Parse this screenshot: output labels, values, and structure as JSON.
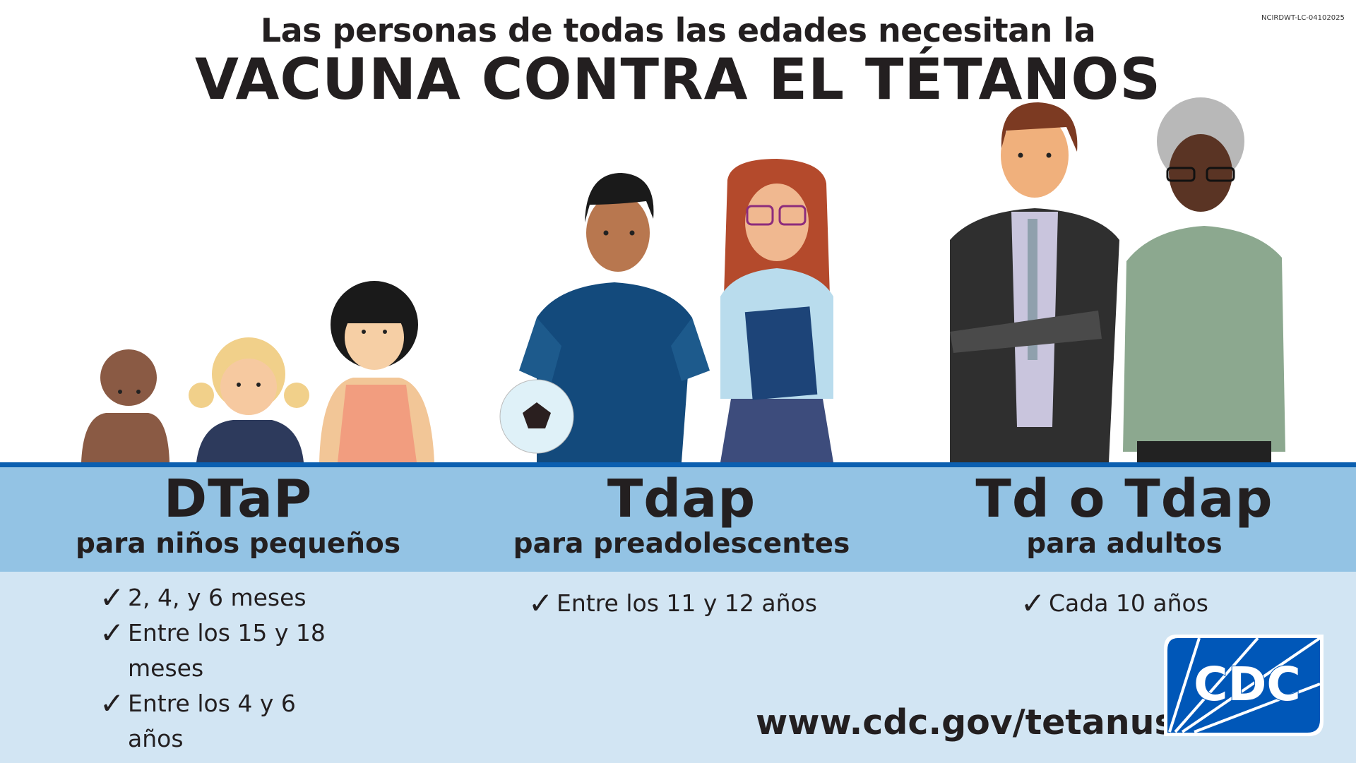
{
  "code": "NCIRDWT-LC-04102025",
  "title": {
    "line1": "Las personas de todas las edades necesitan la",
    "line2": "VACUNA CONTRA EL TÉTANOS"
  },
  "columns": [
    {
      "vaccine": "DTaP",
      "audience": "para niños pequeños",
      "items": [
        "2, 4, y 6 meses",
        "Entre los 15 y 18 meses",
        "Entre los 4 y 6 años"
      ]
    },
    {
      "vaccine": "Tdap",
      "audience": "para preadolescentes",
      "items": [
        "Entre los 11 y 12 años"
      ]
    },
    {
      "vaccine": "Td o Tdap",
      "audience": "para adultos",
      "items": [
        "Cada 10 años"
      ]
    }
  ],
  "check_glyph": "✓",
  "url": "www.cdc.gov/tetanus",
  "logo": {
    "text": "CDC",
    "color": "#0057b8"
  },
  "colors": {
    "rule": "#0b5fb0",
    "band": "#93c3e4",
    "lower": "#d2e5f3"
  }
}
